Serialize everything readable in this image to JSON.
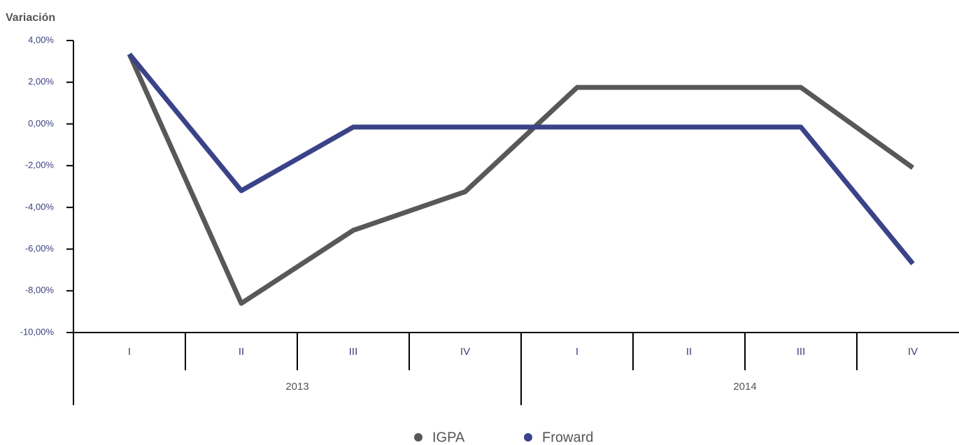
{
  "chart_data": {
    "type": "line",
    "y_label": "Variación",
    "categories": [
      "I",
      "II",
      "III",
      "IV",
      "I",
      "II",
      "III",
      "IV"
    ],
    "years": [
      "2013",
      "2014"
    ],
    "series": [
      {
        "name": "IGPA",
        "color": "#585858",
        "values": [
          3.35,
          -8.6,
          -5.1,
          -3.25,
          1.75,
          1.75,
          1.75,
          -2.1
        ]
      },
      {
        "name": "Froward",
        "color": "#3a4388",
        "values": [
          3.35,
          -3.2,
          -0.15,
          -0.15,
          -0.15,
          -0.15,
          -0.15,
          -6.7
        ]
      }
    ],
    "ylim": [
      -10,
      4
    ],
    "yticks": [
      {
        "value": -10,
        "label": "-10,00%"
      },
      {
        "value": -8,
        "label": "-8,00%"
      },
      {
        "value": -6,
        "label": "-6,00%"
      },
      {
        "value": -4,
        "label": "-4,00%"
      },
      {
        "value": -2,
        "label": "-2,00%"
      },
      {
        "value": 0,
        "label": "0,00%"
      },
      {
        "value": 2,
        "label": "2,00%"
      },
      {
        "value": 4,
        "label": "4,00%"
      }
    ],
    "legend": "bottom"
  }
}
